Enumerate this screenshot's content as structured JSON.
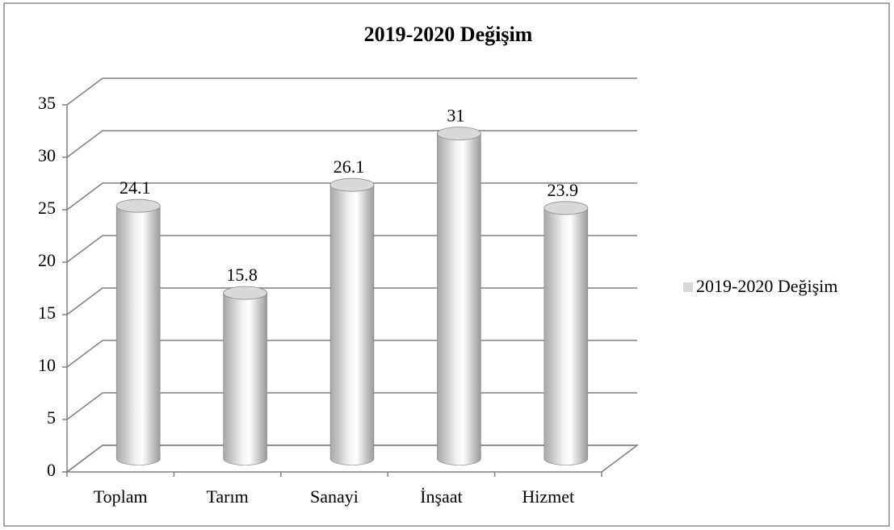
{
  "chart_data": {
    "type": "bar3d",
    "title": "2019-2020 Değişim",
    "categories": [
      "Toplam",
      "Tarım",
      "Sanayi",
      "İnşaat",
      "Hizmet"
    ],
    "series": [
      {
        "name": "2019-2020 Değişim",
        "color": "#d9d9d9",
        "values": [
          24.1,
          15.8,
          26.1,
          31,
          23.9
        ]
      }
    ],
    "ylim": [
      0,
      35
    ],
    "yticks": [
      0,
      5,
      10,
      15,
      20,
      25,
      30,
      35
    ],
    "grid": true,
    "legend": "right"
  }
}
